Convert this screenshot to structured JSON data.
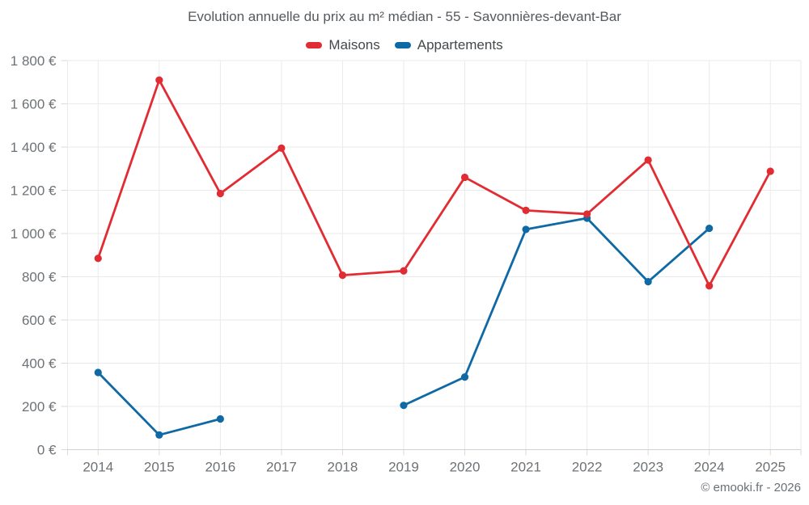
{
  "page": {
    "title": "Evolution annuelle du prix au m² médian - 55 - Savonnières-devant-Bar",
    "copyright": "© emooki.fr - 2026"
  },
  "chart_data": {
    "type": "line",
    "title": "Evolution annuelle du prix au m² médian - 55 - Savonnières-devant-Bar",
    "categories": [
      "2014",
      "2015",
      "2016",
      "2017",
      "2018",
      "2019",
      "2020",
      "2021",
      "2022",
      "2023",
      "2024",
      "2025"
    ],
    "series": [
      {
        "name": "Maisons",
        "color": "#e12c33",
        "values": [
          885,
          1710,
          1185,
          1395,
          807,
          827,
          1260,
          1107,
          1090,
          1340,
          758,
          1288
        ]
      },
      {
        "name": "Appartements",
        "color": "#0e69a4",
        "values": [
          357,
          68,
          142,
          null,
          null,
          205,
          336,
          1019,
          1071,
          777,
          1024,
          null
        ]
      }
    ],
    "ylim": [
      0,
      1800
    ],
    "ytick_step": 200,
    "y_unit": "€",
    "xlabel": "",
    "ylabel": "",
    "grid": true,
    "legend_position": "top",
    "marker": "circle"
  },
  "style": {
    "grid_color": "#e9eaea",
    "tick_color": "#d9dadb",
    "axis_color": "#cfd1d2",
    "axis_label_color": "#6d7276",
    "title_color": "#55595d",
    "legend_text_color": "#44484b",
    "background": "#ffffff"
  }
}
